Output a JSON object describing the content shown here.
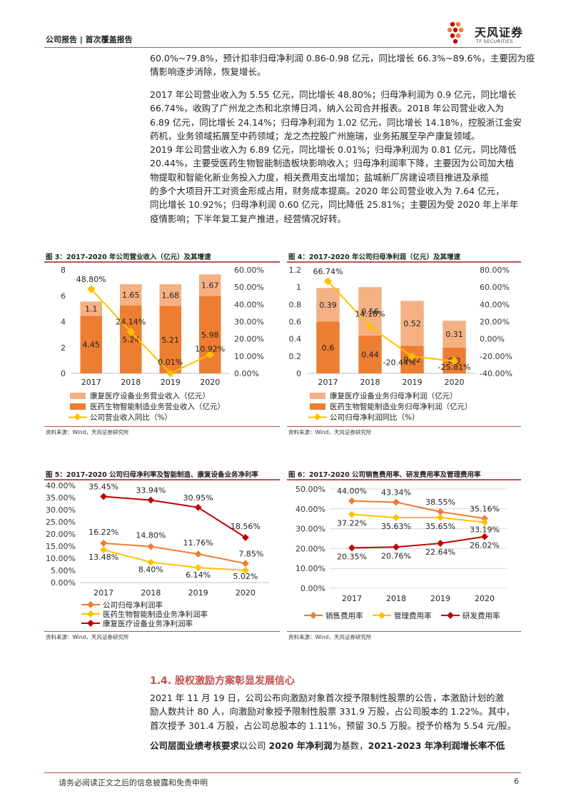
{
  "header": {
    "left": "公司报告 | 首次覆盖报告",
    "logo_cn": "天风证券",
    "logo_en": "TF SECURITIES"
  },
  "para1": [
    "60.0%~79.8%，预计扣非归母净利润 0.86-0.98 亿元，同比增长 66.3%~89.6%，主要因为疫",
    "情影响逐步消除，恢复增长。"
  ],
  "para2": [
    "2017 年公司营业收入为 5.55 亿元，同比增长 48.80%；归母净利润为 0.9 亿元，同比增长",
    "66.74%，收购了广州龙之杰和北京博日鸿，纳入公司合并报表。2018 年公司营业收入为",
    "6.89 亿元，同比增长 24.14%；归母净利润为 1.02 亿元，同比增长 14.18%，控股浙江金安",
    "药机，业务领域拓展至中药领域；龙之杰控股广州施瑞，业务拓展至孕产康复领域。",
    "2019 年公司营业收入为 6.89 亿元，同比增长 0.01%；归母净利润为 0.81 亿元，同比降低",
    "20.44%，主要受医药生物智能制造板块影响收入；归母净利润率下降，主要因为公司加大植",
    "物提取和智能化新业务投入力度，相关费用支出增加；盐城新厂房建设项目推进及承揽",
    "的多个大项目开工对资金形成占用，财务成本提高。2020 年公司营业收入为 7.64 亿元，",
    "同比增长 10.92%；归母净利润 0.60 亿元，同比降低 25.81%；主要因为受 2020 年上半年",
    "疫情影响；下半年复工复产推进，经营情况好转。"
  ],
  "source_text": "资料来源：Wind，天风证券研究所",
  "section_title": "1.4. 股权激励方案彰显发展信心",
  "para3": [
    "2021 年 11 月 19 日，公司公布向激励对象首次授予限制性股票的公告，本激励计划的激",
    "励人数共计 80 人，向激励对象授予限制性股票 331.9 万股，占公司股本的 1.22%。其中，",
    "首次授予 301.4 万股，占公司总股本的 1.11%，预留 30.5 万股。授予价格为 5.54 元/股。"
  ],
  "para4": {
    "b1": "公司层面业绩考核要求",
    "t1": "以公司 ",
    "b2": "2020 年净利润",
    "t2": "为基数，",
    "b3": "2021-2023 年净利润增长率不低"
  },
  "footer": {
    "disclaimer": "请务必阅读正文之后的信息披露和免责申明",
    "page": "6"
  },
  "colors": {
    "light": "#f4b183",
    "dark": "#ed7d31",
    "yellow": "#ffc000",
    "red": "#c00000",
    "accent": "#c0504d"
  },
  "chart_data": [
    {
      "type": "bar",
      "title": "图 3：2017-2020 年公司营业收入（亿元）及其增速",
      "categories": [
        "2017",
        "2018",
        "2019",
        "2020"
      ],
      "series": [
        {
          "name": "医药生物智能制造业务营业收入（亿元）",
          "values": [
            4.45,
            5.24,
            5.21,
            5.98
          ]
        },
        {
          "name": "康复医疗设备业务营业收入（亿元）",
          "values": [
            1.1,
            1.65,
            1.68,
            1.67
          ]
        },
        {
          "name": "公司营业收入同比（%）",
          "axis": "right",
          "kind": "line",
          "values": [
            48.8,
            24.14,
            0.01,
            10.92
          ],
          "labels": [
            "48.80%",
            "24.14%",
            "0.01%",
            "10.92%"
          ]
        }
      ],
      "ylim": [
        0,
        8
      ],
      "yticks": [
        0,
        2,
        4,
        6,
        8
      ],
      "y2lim": [
        0,
        60
      ],
      "y2ticks": [
        "0.00%",
        "10.00%",
        "20.00%",
        "30.00%",
        "40.00%",
        "50.00%",
        "60.00%"
      ],
      "legend": [
        "康复医疗设备业务营业收入（亿元）",
        "医药生物智能制造业务营业收入（亿元）",
        "公司营业收入同比（%）"
      ]
    },
    {
      "type": "bar",
      "title": "图 4：2017-2020 年公司归母净利润（亿元）及其增速",
      "categories": [
        "2017",
        "2018",
        "2019",
        "2020"
      ],
      "series": [
        {
          "name": "医药生物智能制造业务归母净利润（亿元）",
          "values": [
            0.6,
            0.44,
            0.32,
            0.3
          ]
        },
        {
          "name": "康复医疗设备业务归母净利润（亿元）",
          "values": [
            0.39,
            0.56,
            0.52,
            0.31
          ]
        },
        {
          "name": "公司归母净利润同比（%）",
          "axis": "right",
          "kind": "line",
          "values": [
            66.74,
            14.18,
            -20.44,
            -25.81
          ],
          "labels": [
            "66.74%",
            "14.18%",
            "-20.44%",
            "-25.81%"
          ]
        }
      ],
      "ylim": [
        0,
        1.2
      ],
      "yticks": [
        "0",
        "0.2",
        "0.4",
        "0.6",
        "0.8",
        "1",
        "1.2"
      ],
      "y2lim": [
        -40,
        80
      ],
      "y2ticks": [
        "-40.00%",
        "-20.00%",
        "0.00%",
        "20.00%",
        "40.00%",
        "60.00%",
        "80.00%"
      ],
      "legend": [
        "康复医疗设备业务归母净利润（亿元）",
        "医药生物智能制造业务归母净利润（亿元）",
        "公司归母净利润同比（%）"
      ]
    },
    {
      "type": "line",
      "title": "图 5：2017-2020 公司归母净利率及智能制造、康复设备业务净利率",
      "categories": [
        "2017",
        "2018",
        "2019",
        "2020"
      ],
      "series": [
        {
          "name": "公司归母净利润率",
          "values": [
            16.22,
            14.8,
            11.76,
            7.85
          ],
          "labels": [
            "16.22%",
            "14.80%",
            "11.76%",
            "7.85%"
          ]
        },
        {
          "name": "医药生物智能制造业务净利润率",
          "values": [
            13.48,
            8.4,
            6.14,
            5.02
          ],
          "labels": [
            "13.48%",
            "8.40%",
            "6.14%",
            "5.02%"
          ]
        },
        {
          "name": "康复医疗设备业务净利润率",
          "values": [
            35.45,
            33.94,
            30.95,
            18.56
          ],
          "labels": [
            "35.45%",
            "33.94%",
            "30.95%",
            "18.56%"
          ]
        }
      ],
      "ylim": [
        0,
        40
      ],
      "yticks": [
        "0.00%",
        "5.00%",
        "10.00%",
        "15.00%",
        "20.00%",
        "25.00%",
        "30.00%",
        "35.00%",
        "40.00%"
      ]
    },
    {
      "type": "line",
      "title": "图 6：2017-2020 公司销售费用率、研发费用率及管理费用率",
      "categories": [
        "2017",
        "2018",
        "2019",
        "2020"
      ],
      "series": [
        {
          "name": "销售费用率",
          "values": [
            44.0,
            43.34,
            38.55,
            35.16
          ],
          "labels": [
            "44.00%",
            "43.34%",
            "38.55%",
            "35.16%"
          ]
        },
        {
          "name": "管理费用率",
          "values": [
            37.22,
            35.63,
            35.65,
            33.19
          ],
          "labels": [
            "37.22%",
            "35.63%",
            "35.65%",
            "33.19%"
          ]
        },
        {
          "name": "研发费用率",
          "values": [
            20.35,
            20.76,
            22.64,
            26.02
          ],
          "labels": [
            "20.35%",
            "20.76%",
            "22.64%",
            "26.02%"
          ]
        }
      ],
      "ylim": [
        0,
        50
      ],
      "yticks": [
        "0.00%",
        "10.00%",
        "20.00%",
        "30.00%",
        "40.00%",
        "50.00%"
      ]
    }
  ]
}
